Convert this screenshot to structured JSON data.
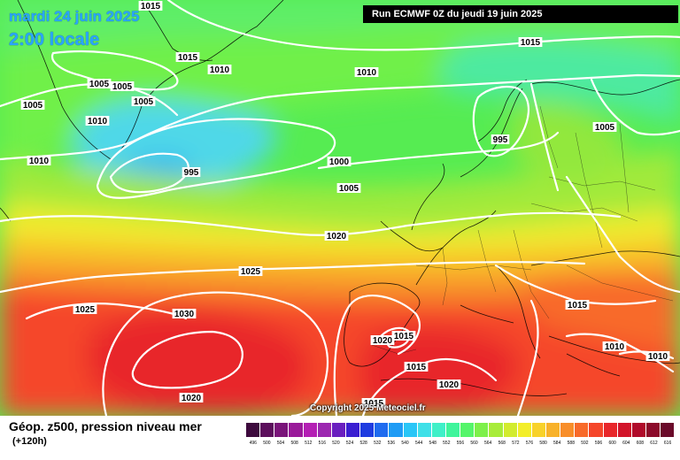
{
  "header": {
    "date": "mardi 24 juin 2025",
    "time": "2:00 locale",
    "run": "Run ECMWF 0Z du jeudi 19 juin 2025"
  },
  "copyright": "Copyright 2025 Meteociel.fr",
  "footer": {
    "title": "Géop. z500, pression niveau mer",
    "subtitle": "(+120h)"
  },
  "isobars": [
    "1015",
    "1015",
    "1010",
    "1005",
    "1005",
    "1005",
    "1005",
    "1010",
    "1010",
    "1010",
    "995",
    "1000",
    "1005",
    "995",
    "1005",
    "1015",
    "1020",
    "1025",
    "1025",
    "1030",
    "1020",
    "1020",
    "1015",
    "1015",
    "1020",
    "1015",
    "1015",
    "1010",
    "1010"
  ],
  "legend": {
    "ticks": [
      "496",
      "500",
      "504",
      "508",
      "512",
      "516",
      "520",
      "524",
      "528",
      "532",
      "536",
      "540",
      "544",
      "548",
      "552",
      "556",
      "560",
      "564",
      "568",
      "572",
      "576",
      "580",
      "584",
      "588",
      "592",
      "596",
      "600",
      "604",
      "608",
      "612",
      "616"
    ],
    "colors": [
      "#3d0a3d",
      "#5c0e5c",
      "#7a147a",
      "#9a1a9a",
      "#b41fb4",
      "#9c27b0",
      "#6a1fbf",
      "#3b1fd1",
      "#1f3ce0",
      "#1f6bef",
      "#1f9cf5",
      "#29c6f7",
      "#3fe0e8",
      "#3ff0c8",
      "#3ff59c",
      "#55f56a",
      "#7df04a",
      "#a8ec3a",
      "#d2ec2e",
      "#f3ee2a",
      "#f8d22a",
      "#f8b22a",
      "#f88e2a",
      "#f86a2a",
      "#f5462a",
      "#e8262a",
      "#d2142a",
      "#b00a2a",
      "#8c0a2a",
      "#6a0a2a"
    ]
  }
}
